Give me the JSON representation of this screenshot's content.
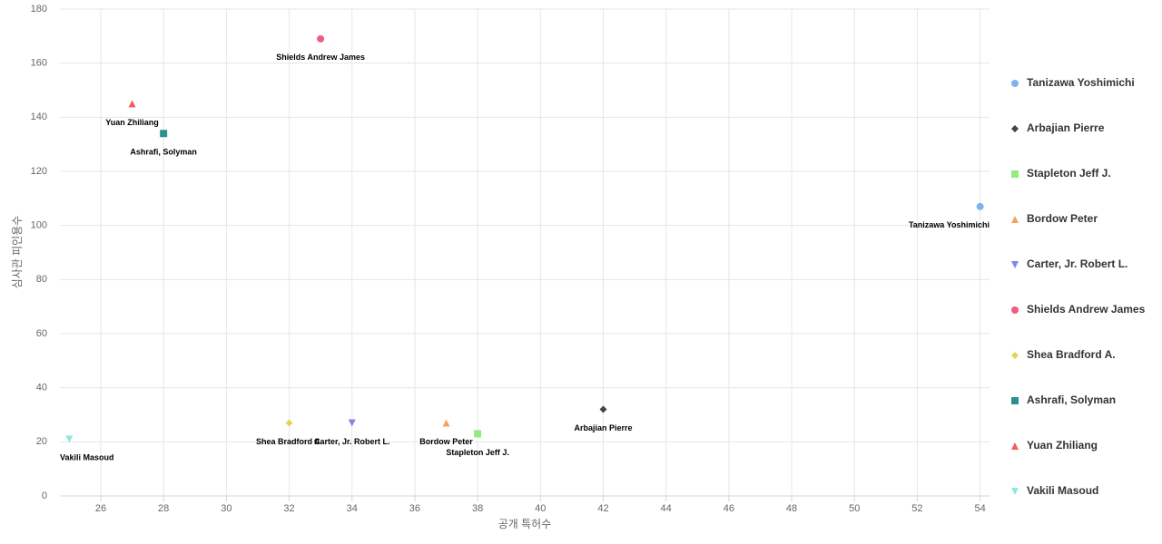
{
  "chart_data": {
    "type": "scatter",
    "x_label": "공개 특허수",
    "y_label": "심사관 피인용수",
    "xlim": [
      24.7,
      54.3
    ],
    "xticks": [
      26,
      28,
      30,
      32,
      34,
      36,
      38,
      40,
      42,
      44,
      46,
      48,
      50,
      52,
      54
    ],
    "ylim": [
      0,
      180
    ],
    "yticks": [
      0,
      20,
      40,
      60,
      80,
      100,
      120,
      140,
      160,
      180
    ],
    "grid": true,
    "legend": "right",
    "series": [
      {
        "name": "Tanizawa Yoshimichi",
        "color": "#7cb5ec",
        "marker": "circle",
        "x": [
          54
        ],
        "values": [
          107
        ]
      },
      {
        "name": "Arbajian Pierre",
        "color": "#434348",
        "marker": "diamond",
        "x": [
          42
        ],
        "values": [
          32
        ]
      },
      {
        "name": "Stapleton Jeff J.",
        "color": "#90ed7d",
        "marker": "square",
        "x": [
          38
        ],
        "values": [
          23
        ]
      },
      {
        "name": "Bordow Peter",
        "color": "#f7a35c",
        "marker": "triangle",
        "x": [
          37
        ],
        "values": [
          27
        ]
      },
      {
        "name": "Carter, Jr. Robert L.",
        "color": "#8085e9",
        "marker": "triangle-down",
        "x": [
          34
        ],
        "values": [
          27
        ]
      },
      {
        "name": "Shields Andrew James",
        "color": "#f15c80",
        "marker": "circle",
        "x": [
          33
        ],
        "values": [
          169
        ]
      },
      {
        "name": "Shea Bradford A.",
        "color": "#e4d354",
        "marker": "diamond",
        "x": [
          32
        ],
        "values": [
          27
        ]
      },
      {
        "name": "Ashrafi, Solyman",
        "color": "#2b908f",
        "marker": "square",
        "x": [
          28
        ],
        "values": [
          134
        ]
      },
      {
        "name": "Yuan Zhiliang",
        "color": "#f45b5b",
        "marker": "triangle",
        "x": [
          27
        ],
        "values": [
          145
        ]
      },
      {
        "name": "Vakili Masoud",
        "color": "#91e8e1",
        "marker": "triangle-down",
        "x": [
          25
        ],
        "values": [
          21
        ]
      }
    ]
  }
}
